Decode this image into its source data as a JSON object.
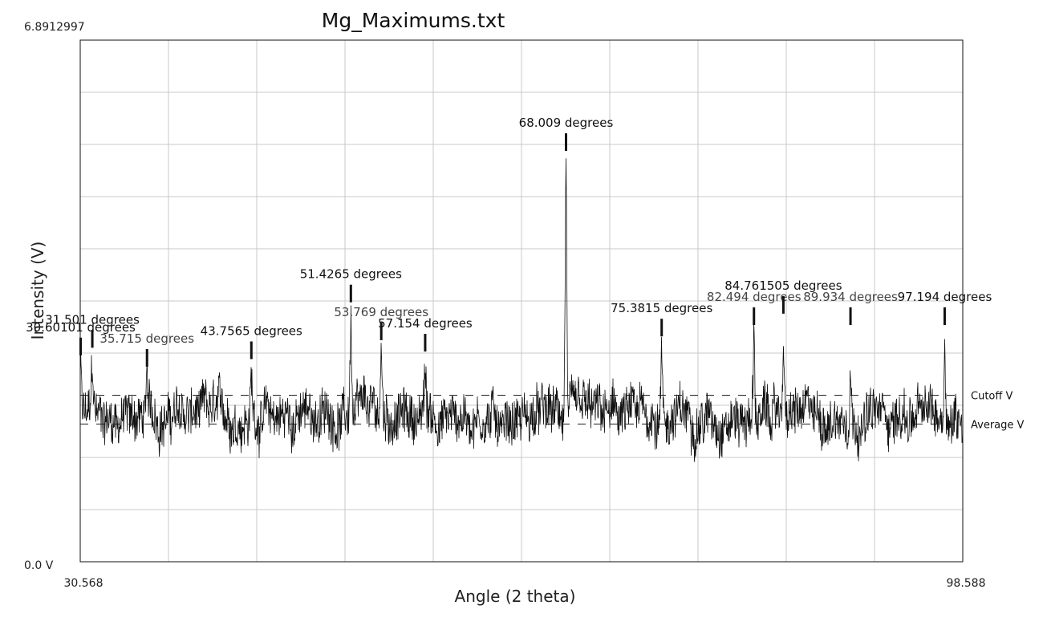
{
  "chart_data": {
    "type": "line",
    "title": "Mg_Maximums.txt",
    "xlabel": "Angle (2 theta)",
    "ylabel": "Intensity (V)",
    "xlim": [
      30.568,
      98.588
    ],
    "ylim": [
      0.0,
      6.8912997
    ],
    "x_tick_labels": {
      "min": "30.568",
      "max": "98.588"
    },
    "y_tick_labels": {
      "min": "0.0 V",
      "max": "6.8912997"
    },
    "grid": true,
    "reference_lines": [
      {
        "name": "Cutoff V",
        "value": 2.2
      },
      {
        "name": "Average V",
        "value": 1.82
      }
    ],
    "noise": {
      "mean": 1.92,
      "amplitude": 0.38
    },
    "peaks": [
      {
        "x": 30.6,
        "y": 2.6,
        "label": "30.60101 degrees",
        "style": "bold"
      },
      {
        "x": 31.5,
        "y": 2.7,
        "label": "31.501 degrees",
        "style": "bold"
      },
      {
        "x": 35.715,
        "y": 2.45,
        "label": "35.715 degrees",
        "style": "light"
      },
      {
        "x": 43.7565,
        "y": 2.55,
        "label": "43.7565 degrees",
        "style": "bold"
      },
      {
        "x": 51.4265,
        "y": 3.3,
        "label": "51.4265 degrees",
        "style": "bold"
      },
      {
        "x": 53.769,
        "y": 2.8,
        "label": "53.769 degrees",
        "style": "light"
      },
      {
        "x": 57.154,
        "y": 2.65,
        "label": "57.154 degrees",
        "style": "bold"
      },
      {
        "x": 68.009,
        "y": 5.3,
        "label": "68.009 degrees",
        "style": "bold"
      },
      {
        "x": 75.3815,
        "y": 2.85,
        "label": "75.3815 degrees",
        "style": "bold"
      },
      {
        "x": 82.494,
        "y": 3.0,
        "label": "82.494 degrees",
        "style": "light"
      },
      {
        "x": 84.761505,
        "y": 3.15,
        "label": "84.761505 degrees",
        "style": "bold"
      },
      {
        "x": 89.934,
        "y": 3.0,
        "label": "89.934 degrees",
        "style": "light"
      },
      {
        "x": 97.194,
        "y": 3.0,
        "label": "97.194 degrees",
        "style": "bold"
      }
    ]
  }
}
